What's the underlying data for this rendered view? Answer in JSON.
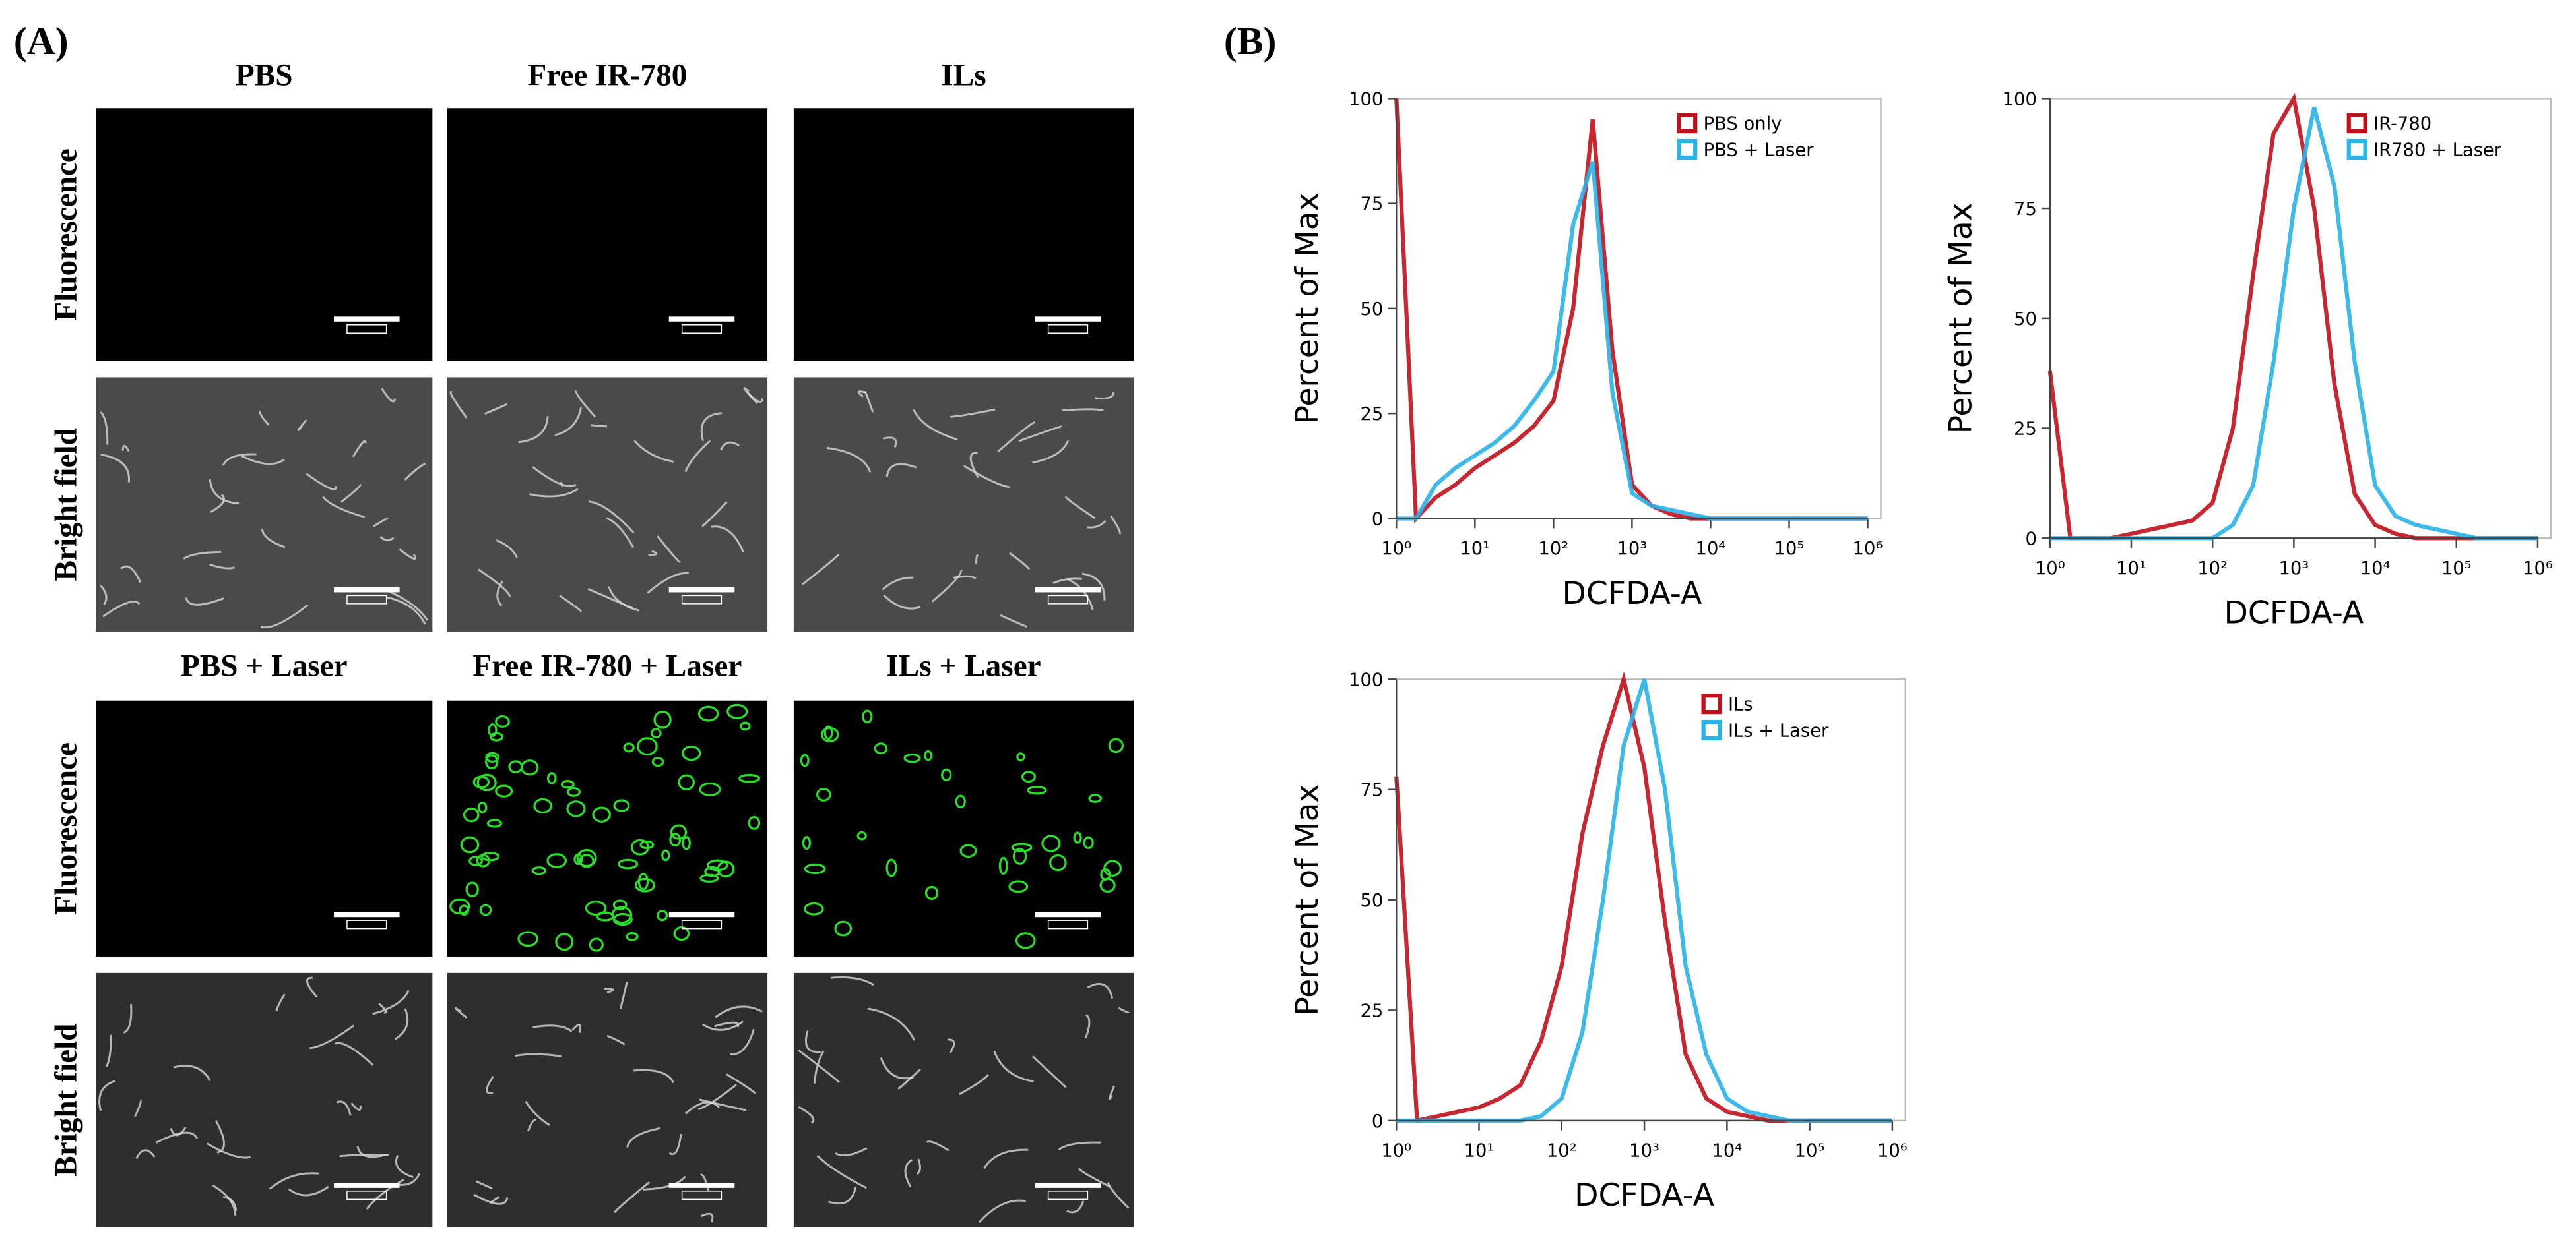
{
  "panel_a": {
    "label": "(A)",
    "columns_top": [
      "PBS",
      "Free IR-780",
      "ILs"
    ],
    "columns_bottom": [
      "PBS + Laser",
      "Free IR-780 + Laser",
      "ILs + Laser"
    ],
    "rows": [
      "Fluorescence",
      "Bright field",
      "Fluorescence",
      "Bright field"
    ]
  },
  "panel_b": {
    "label": "(B)"
  },
  "chart_data": [
    {
      "type": "line",
      "x_label": "DCFDA-A",
      "y_label": "Percent of Max",
      "log_x": true,
      "legend": "upper right",
      "x": [
        1,
        1.78,
        3.16,
        5.62,
        10,
        17.8,
        31.6,
        56.2,
        100,
        178,
        316,
        562,
        1000,
        1780,
        3160,
        5620,
        10000,
        17800,
        31600,
        56200,
        100000,
        178000,
        316000,
        562000,
        1000000
      ],
      "xlim": [
        1,
        1000000
      ],
      "xticks": [
        {
          "value": 1,
          "label": "10⁰"
        },
        {
          "value": 10,
          "label": "10¹"
        },
        {
          "value": 100,
          "label": "10²"
        },
        {
          "value": 1000,
          "label": "10³"
        },
        {
          "value": 10000,
          "label": "10⁴"
        },
        {
          "value": 100000,
          "label": "10⁵"
        },
        {
          "value": 1000000,
          "label": "10⁶"
        }
      ],
      "ylim": [
        0,
        100
      ],
      "yticks": [
        0,
        25,
        50,
        75,
        100
      ],
      "series": [
        {
          "name": "PBS only",
          "color": "#c0101a",
          "values": [
            100,
            0,
            5,
            8,
            12,
            15,
            18,
            22,
            28,
            50,
            95,
            40,
            8,
            3,
            1,
            0,
            0,
            0,
            0,
            0,
            0,
            0,
            0,
            0,
            0
          ]
        },
        {
          "name": "PBS + Laser",
          "color": "#29b3e8",
          "values": [
            0,
            0,
            8,
            12,
            15,
            18,
            22,
            28,
            35,
            70,
            85,
            30,
            6,
            3,
            2,
            1,
            0,
            0,
            0,
            0,
            0,
            0,
            0,
            0,
            0
          ]
        }
      ]
    },
    {
      "type": "line",
      "x_label": "DCFDA-A",
      "y_label": "Percent of Max",
      "log_x": true,
      "legend": "upper right",
      "x": [
        1,
        1.78,
        3.16,
        5.62,
        10,
        17.8,
        31.6,
        56.2,
        100,
        178,
        316,
        562,
        1000,
        1780,
        3160,
        5620,
        10000,
        17800,
        31600,
        56200,
        100000,
        178000,
        316000,
        562000,
        1000000
      ],
      "xlim": [
        1,
        1000000
      ],
      "xticks": [
        {
          "value": 1,
          "label": "10⁰"
        },
        {
          "value": 10,
          "label": "10¹"
        },
        {
          "value": 100,
          "label": "10²"
        },
        {
          "value": 1000,
          "label": "10³"
        },
        {
          "value": 10000,
          "label": "10⁴"
        },
        {
          "value": 100000,
          "label": "10⁵"
        },
        {
          "value": 1000000,
          "label": "10⁶"
        }
      ],
      "ylim": [
        0,
        100
      ],
      "yticks": [
        0,
        25,
        50,
        75,
        100
      ],
      "series": [
        {
          "name": "IR-780",
          "color": "#c0101a",
          "values": [
            38,
            0,
            0,
            0,
            1,
            2,
            3,
            4,
            8,
            25,
            60,
            92,
            100,
            75,
            35,
            10,
            3,
            1,
            0,
            0,
            0,
            0,
            0,
            0,
            0
          ]
        },
        {
          "name": "IR780 + Laser",
          "color": "#29b3e8",
          "values": [
            0,
            0,
            0,
            0,
            0,
            0,
            0,
            0,
            0,
            3,
            12,
            40,
            75,
            98,
            80,
            40,
            12,
            5,
            3,
            2,
            1,
            0,
            0,
            0,
            0
          ]
        }
      ]
    },
    {
      "type": "line",
      "x_label": "DCFDA-A",
      "y_label": "Percent of Max",
      "log_x": true,
      "legend": "upper right",
      "x": [
        1,
        1.78,
        3.16,
        5.62,
        10,
        17.8,
        31.6,
        56.2,
        100,
        178,
        316,
        562,
        1000,
        1780,
        3160,
        5620,
        10000,
        17800,
        31600,
        56200,
        100000,
        178000,
        316000,
        562000,
        1000000
      ],
      "xlim": [
        1,
        1000000
      ],
      "xticks": [
        {
          "value": 1,
          "label": "10⁰"
        },
        {
          "value": 10,
          "label": "10¹"
        },
        {
          "value": 100,
          "label": "10²"
        },
        {
          "value": 1000,
          "label": "10³"
        },
        {
          "value": 10000,
          "label": "10⁴"
        },
        {
          "value": 100000,
          "label": "10⁵"
        },
        {
          "value": 1000000,
          "label": "10⁶"
        }
      ],
      "ylim": [
        0,
        100
      ],
      "yticks": [
        0,
        25,
        50,
        75,
        100
      ],
      "series": [
        {
          "name": "ILs",
          "color": "#c0101a",
          "values": [
            78,
            0,
            1,
            2,
            3,
            5,
            8,
            18,
            35,
            65,
            85,
            100,
            80,
            45,
            15,
            5,
            2,
            1,
            0,
            0,
            0,
            0,
            0,
            0,
            0
          ]
        },
        {
          "name": "ILs + Laser",
          "color": "#29b3e8",
          "values": [
            0,
            0,
            0,
            0,
            0,
            0,
            0,
            1,
            5,
            20,
            50,
            85,
            100,
            75,
            35,
            15,
            5,
            2,
            1,
            0,
            0,
            0,
            0,
            0,
            0
          ]
        }
      ]
    }
  ]
}
